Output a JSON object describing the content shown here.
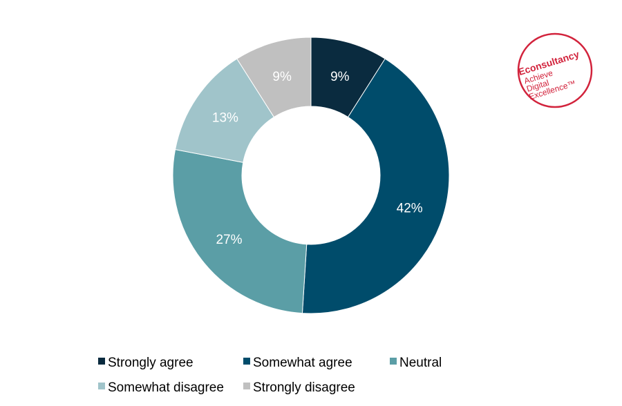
{
  "chart_data": {
    "type": "pie",
    "donut": true,
    "title": "",
    "categories": [
      "Strongly agree",
      "Somewhat agree",
      "Neutral",
      "Somewhat disagree",
      "Strongly disagree"
    ],
    "values": [
      9,
      42,
      27,
      13,
      9
    ],
    "labels": [
      "9%",
      "42%",
      "27%",
      "13%",
      "9%"
    ],
    "colors": [
      "#0a2b3f",
      "#004c6b",
      "#5b9ea6",
      "#a0c4ca",
      "#c0c0c0"
    ],
    "legend_position": "bottom",
    "start_angle": "12 o'clock, clockwise"
  },
  "logo": {
    "brand": "Econsultancy",
    "line2": "Achieve",
    "line3": "Digital",
    "line4": "Excellence™",
    "color": "#d2233c"
  }
}
